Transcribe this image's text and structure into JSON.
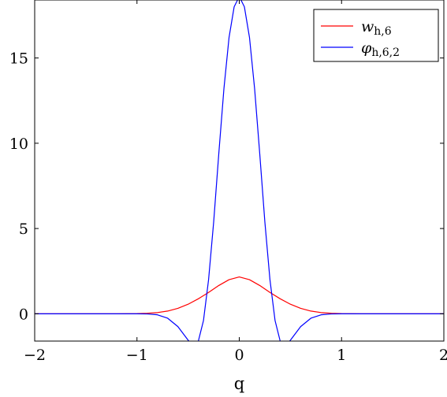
{
  "chart_data": {
    "type": "line",
    "xlabel": "q",
    "ylabel": "",
    "xlim": [
      -2,
      2
    ],
    "ylim": [
      -1.6,
      18.4
    ],
    "x_ticks": [
      -2,
      -1,
      0,
      1,
      2
    ],
    "x_tick_labels": [
      "−2",
      "−1",
      "0",
      "1",
      "2"
    ],
    "y_ticks": [
      0,
      5,
      10,
      15
    ],
    "y_tick_labels": [
      "0",
      "5",
      "10",
      "15"
    ],
    "grid": false,
    "legend_position": "top-right",
    "series": [
      {
        "name": "w_h,6",
        "legend_main": "w",
        "legend_sub": "h,6",
        "color": "#ff0000",
        "x": [
          -2,
          -1.2,
          -1.0,
          -0.9,
          -0.8,
          -0.7,
          -0.6,
          -0.5,
          -0.4,
          -0.3,
          -0.2,
          -0.1,
          0,
          0.1,
          0.2,
          0.3,
          0.4,
          0.5,
          0.6,
          0.7,
          0.8,
          0.9,
          1.0,
          1.2,
          2
        ],
        "y": [
          0,
          0,
          0.01,
          0.03,
          0.07,
          0.16,
          0.32,
          0.56,
          0.88,
          1.25,
          1.66,
          2.0,
          2.16,
          2.0,
          1.66,
          1.25,
          0.88,
          0.56,
          0.32,
          0.16,
          0.07,
          0.03,
          0.01,
          0,
          0
        ]
      },
      {
        "name": "φ_h,6,2",
        "legend_main": "φ",
        "legend_sub": "h,6,2",
        "color": "#0000ff",
        "x": [
          -2,
          -1.0,
          -0.9,
          -0.8,
          -0.7,
          -0.6,
          -0.55,
          -0.5,
          -0.45,
          -0.4,
          -0.35,
          -0.3,
          -0.25,
          -0.2,
          -0.15,
          -0.1,
          -0.05,
          0,
          0.05,
          0.1,
          0.15,
          0.2,
          0.25,
          0.3,
          0.35,
          0.4,
          0.45,
          0.5,
          0.55,
          0.6,
          0.7,
          0.8,
          0.9,
          1.0,
          2
        ],
        "y": [
          0,
          0,
          -0.01,
          -0.06,
          -0.26,
          -0.75,
          -1.15,
          -1.55,
          -1.85,
          -1.6,
          -0.4,
          2.0,
          5.4,
          9.4,
          13.2,
          16.2,
          18.0,
          18.6,
          18.0,
          16.2,
          13.2,
          9.4,
          5.4,
          2.0,
          -0.4,
          -1.6,
          -1.85,
          -1.55,
          -1.15,
          -0.75,
          -0.26,
          -0.06,
          -0.01,
          0,
          0
        ]
      }
    ]
  }
}
